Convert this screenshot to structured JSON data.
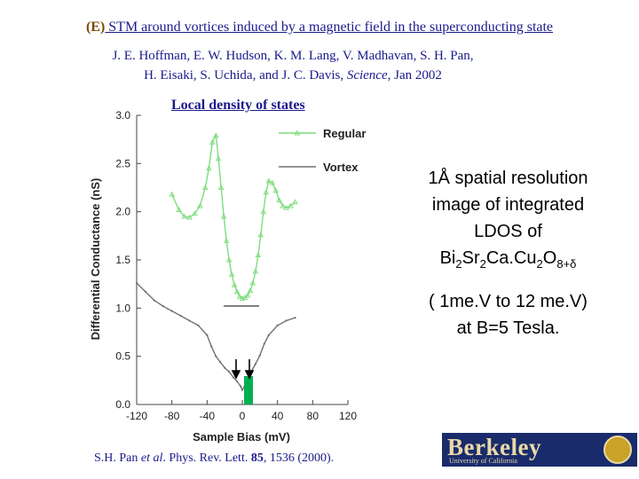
{
  "slide": {
    "title_tag": "(E)",
    "title_rest": " STM around vortices induced by a magnetic field in the superconducting state",
    "authors_line1": "J. E. Hoffman, E. W. Hudson, K. M. Lang, V. Madhavan, S. H. Pan,",
    "authors_line2_a": "H. Eisaki, S. Uchida, and J. C. Davis, ",
    "authors_line2_journal": "Science,",
    "authors_line2_b": " Jan 2002",
    "ldos_label": "Local density of states",
    "side_line1": "1Å spatial resolution",
    "side_line2": "image of integrated",
    "side_line3": "LDOS of",
    "formula_bi": "Bi",
    "formula_bi_sub": "2",
    "formula_sr": "Sr",
    "formula_sr_sub": "2",
    "formula_cacu": "Ca.Cu",
    "formula_cu_sub": "2",
    "formula_o": "O",
    "formula_o_sub": "8+δ",
    "side_line5": "( 1me.V to 12 me.V)",
    "side_line6": "at B=5 Tesla.",
    "cite_a": "S.H. Pan ",
    "cite_etal": "et al",
    "cite_b": ". Phys. Rev. Lett. ",
    "cite_vol": "85",
    "cite_c": ", 1536 (2000).",
    "logo_word": "Berkeley",
    "logo_sub": "University of California",
    "logo_color": "#1a2b6b",
    "accent_green": "#00b050"
  },
  "chart_data": {
    "type": "line",
    "xlabel": "Sample Bias (mV)",
    "ylabel": "Differential Conductance (nS)",
    "xlim": [
      -120,
      120
    ],
    "ylim": [
      0,
      3.0
    ],
    "xticks": [
      -120,
      -80,
      -40,
      0,
      40,
      80,
      120
    ],
    "yticks": [
      0.0,
      0.5,
      1.0,
      1.5,
      2.0,
      2.5,
      3.0
    ],
    "ytick_labels": [
      "0.0",
      "0.5",
      "1.0",
      "1.5",
      "2.0",
      "2.5",
      "3.0"
    ],
    "legend_position": "top-right",
    "series": [
      {
        "name": "Regular",
        "color": "#7ddc7d",
        "x": [
          -80,
          -72,
          -66,
          -60,
          -54,
          -48,
          -42,
          -38,
          -34,
          -30,
          -27,
          -24,
          -21,
          -18,
          -15,
          -12,
          -9,
          -6,
          -3,
          0,
          3,
          6,
          9,
          12,
          15,
          18,
          21,
          24,
          27,
          30,
          34,
          38,
          42,
          46,
          50,
          55,
          60
        ],
        "values": [
          2.18,
          2.02,
          1.95,
          1.94,
          1.98,
          2.06,
          2.25,
          2.45,
          2.72,
          2.79,
          2.55,
          2.25,
          1.95,
          1.7,
          1.5,
          1.35,
          1.24,
          1.17,
          1.12,
          1.1,
          1.11,
          1.13,
          1.18,
          1.26,
          1.38,
          1.55,
          1.76,
          2.0,
          2.2,
          2.32,
          2.3,
          2.22,
          2.12,
          2.06,
          2.04,
          2.06,
          2.1
        ]
      },
      {
        "name": "Vortex",
        "color": "#707070",
        "x": [
          -120,
          -110,
          -100,
          -90,
          -80,
          -70,
          -60,
          -50,
          -40,
          -35,
          -30,
          -25,
          -20,
          -15,
          -10,
          -6,
          -2,
          0,
          2,
          6,
          10,
          15,
          20,
          25,
          30,
          40,
          50,
          60
        ],
        "values": [
          1.26,
          1.17,
          1.08,
          1.02,
          0.97,
          0.92,
          0.87,
          0.82,
          0.72,
          0.6,
          0.5,
          0.44,
          0.38,
          0.34,
          0.28,
          0.24,
          0.19,
          0.15,
          0.18,
          0.26,
          0.34,
          0.42,
          0.51,
          0.63,
          0.72,
          0.82,
          0.87,
          0.9
        ]
      }
    ]
  }
}
